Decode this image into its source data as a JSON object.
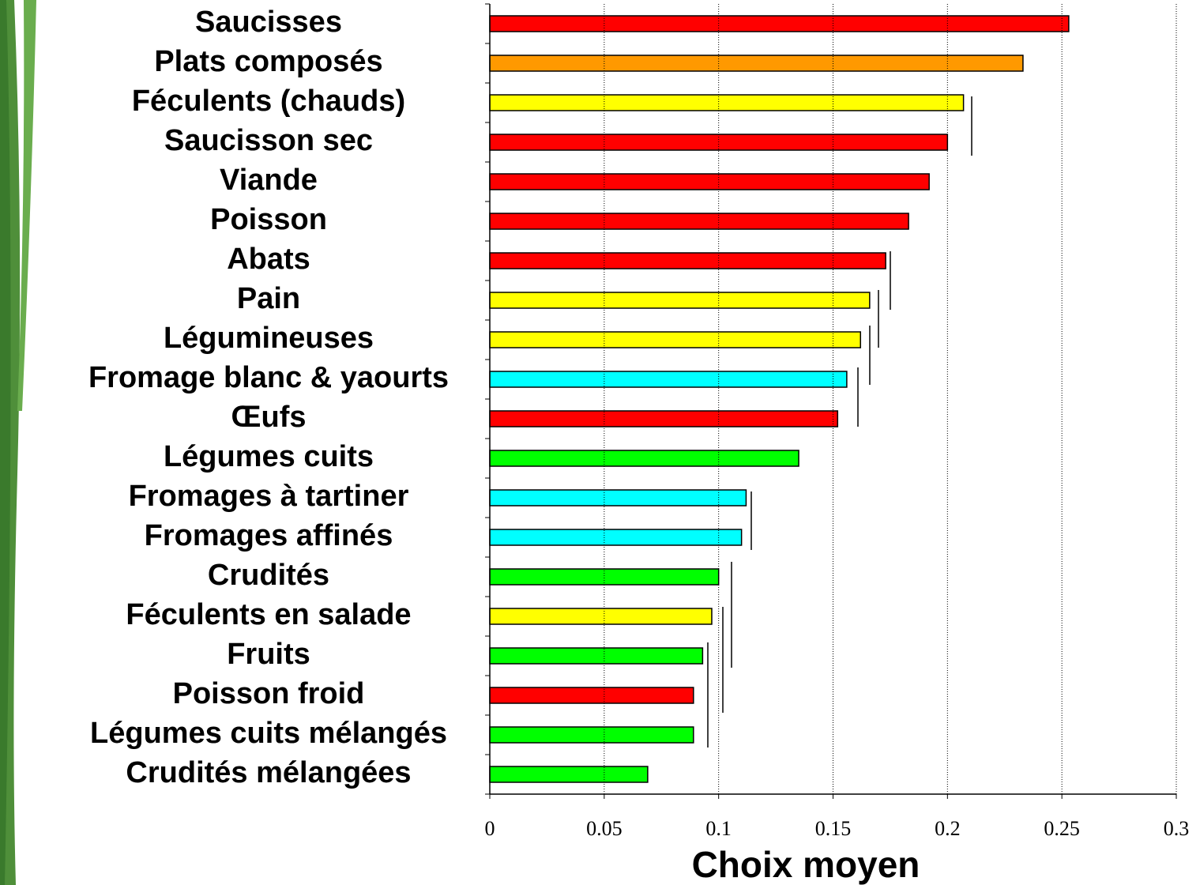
{
  "chart_data": {
    "type": "bar",
    "orientation": "horizontal",
    "x_label": "Choix moyen",
    "categories": [
      "Saucisses",
      "Plats composés",
      "Féculents (chauds)",
      "Saucisson sec",
      "Viande",
      "Poisson",
      "Abats",
      "Pain",
      "Légumineuses",
      "Fromage blanc & yaourts",
      "Œufs",
      "Légumes cuits",
      "Fromages à tartiner",
      "Fromages affinés",
      "Crudités",
      "Féculents en salade",
      "Fruits",
      "Poisson froid",
      "Légumes cuits mélangés",
      "Crudités mélangées"
    ],
    "values": [
      0.253,
      0.233,
      0.207,
      0.2,
      0.192,
      0.183,
      0.173,
      0.166,
      0.162,
      0.156,
      0.152,
      0.135,
      0.112,
      0.11,
      0.1,
      0.097,
      0.093,
      0.089,
      0.089,
      0.069
    ],
    "colors": [
      "#ff0000",
      "#ff9900",
      "#ffff00",
      "#ff0000",
      "#ff0000",
      "#ff0000",
      "#ff0000",
      "#ffff00",
      "#ffff00",
      "#00ffff",
      "#ff0000",
      "#00ff00",
      "#00ffff",
      "#00ffff",
      "#00ff00",
      "#ffff00",
      "#00ff00",
      "#ff0000",
      "#00ff00",
      "#00ff00"
    ],
    "xlim": [
      0,
      0.3
    ],
    "xticks": [
      0,
      0.05,
      0.1,
      0.15,
      0.2,
      0.25,
      0.3
    ],
    "grid": true
  }
}
